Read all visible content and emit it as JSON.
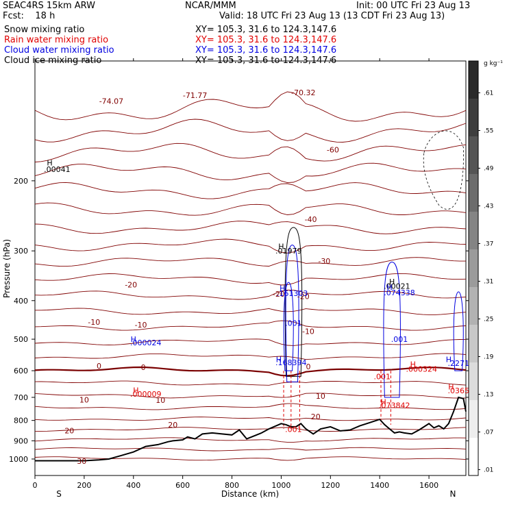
{
  "header": {
    "model": "SEAC4RS 15km ARW",
    "org": "NCAR/MMM",
    "init": "Init: 00 UTC Fri 23 Aug 13",
    "fcst": "Fcst:    18 h",
    "valid": "Valid: 18 UTC Fri 23 Aug 13 (13 CDT Fri 23 Aug 13)",
    "fields": [
      {
        "name": "Snow mixing ratio",
        "xy": "XY= 105.3, 31.6 to 124.3,147.6",
        "color": "#000000"
      },
      {
        "name": "Rain water mixing ratio",
        "xy": "XY= 105.3, 31.6 to 124.3,147.6",
        "color": "#e00000"
      },
      {
        "name": "Cloud water mixing ratio",
        "xy": "XY= 105.3, 31.6 to 124.3,147.6",
        "color": "#0000e0"
      },
      {
        "name": "Cloud ice mixing ratio",
        "xy": "XY= 105.3, 31.6 to 124.3,147.6",
        "color": "#000000"
      }
    ]
  },
  "chart_data": {
    "type": "cross-section contour",
    "xlabel": "Distance (km)",
    "ylabel": "Pressure (hPa)",
    "xlim": [
      0,
      1750
    ],
    "ylim": [
      1100,
      100
    ],
    "y_log": true,
    "x_ticks": [
      0,
      200,
      400,
      600,
      800,
      1000,
      1200,
      1400,
      1600
    ],
    "y_ticks": [
      200,
      300,
      400,
      500,
      600,
      700,
      800,
      900,
      1000
    ],
    "y_tick_labels_printed": [
      "200",
      "300",
      "400",
      "500",
      "600",
      "700",
      "800",
      "900",
      "1000"
    ],
    "end_labels": {
      "left": "S",
      "right": "N"
    },
    "colorbar": {
      "unit": "g kg⁻¹",
      "labels": [
        ".61",
        ".55",
        ".49",
        ".43",
        ".37",
        ".31",
        ".25",
        ".19",
        ".13",
        ".07",
        ".01"
      ],
      "colors": [
        "#2a2a2a",
        "#3e3e3e",
        "#555555",
        "#6c6c6c",
        "#848484",
        "#9b9b9b",
        "#b2b2b2",
        "#c8c8c8",
        "#dcdcdc",
        "#eeeeee",
        "#ffffff"
      ]
    },
    "temperature_contours": {
      "color": "#800000",
      "zero_color": "#7a0000",
      "labels": [
        {
          "text": "-74.07",
          "x": 310,
          "p": 126
        },
        {
          "text": "-71.77",
          "x": 650,
          "p": 122
        },
        {
          "text": "-70.32",
          "x": 1090,
          "p": 120
        },
        {
          "text": "-60",
          "x": 1210,
          "p": 167
        },
        {
          "text": "-40",
          "x": 1120,
          "p": 250
        },
        {
          "text": "-30",
          "x": 1175,
          "p": 318
        },
        {
          "text": "-20",
          "x": 390,
          "p": 365
        },
        {
          "text": "-20",
          "x": 990,
          "p": 385
        },
        {
          "text": "-20",
          "x": 1090,
          "p": 390
        },
        {
          "text": "-10",
          "x": 240,
          "p": 453
        },
        {
          "text": "-10",
          "x": 430,
          "p": 460
        },
        {
          "text": "-10",
          "x": 1110,
          "p": 478
        },
        {
          "text": "0",
          "x": 260,
          "p": 583
        },
        {
          "text": "0",
          "x": 440,
          "p": 588
        },
        {
          "text": "0",
          "x": 1110,
          "p": 586
        },
        {
          "text": "10",
          "x": 200,
          "p": 710
        },
        {
          "text": "10",
          "x": 510,
          "p": 711
        },
        {
          "text": "10",
          "x": 1160,
          "p": 694
        },
        {
          "text": "20",
          "x": 1140,
          "p": 782
        },
        {
          "text": "20",
          "x": 560,
          "p": 820
        },
        {
          "text": "20",
          "x": 140,
          "p": 848
        },
        {
          "text": "30",
          "x": 190,
          "p": 1012
        }
      ]
    },
    "maxima_labels": [
      {
        "text": "H",
        "x": 60,
        "p": 180,
        "color": "#000000"
      },
      {
        "text": ".00041",
        "x": 90,
        "p": 187,
        "color": "#000000"
      },
      {
        "text": "H",
        "x": 1000,
        "p": 292,
        "color": "#000000"
      },
      {
        "text": ".01979",
        "x": 1030,
        "p": 300,
        "color": "#000000"
      },
      {
        "text": "H",
        "x": 1450,
        "p": 358,
        "color": "#000000"
      },
      {
        "text": ".00021",
        "x": 1470,
        "p": 368,
        "color": "#000000"
      },
      {
        "text": "H",
        "x": 1005,
        "p": 372,
        "color": "#0000e0"
      },
      {
        "text": ".161303",
        "x": 1045,
        "p": 383,
        "color": "#0000e0"
      },
      {
        "text": "H",
        "x": 1440,
        "p": 370,
        "color": "#0000e0"
      },
      {
        "text": ".074338",
        "x": 1480,
        "p": 382,
        "color": "#0000e0"
      },
      {
        "text": ".001",
        "x": 1050,
        "p": 455,
        "color": "#0000e0"
      },
      {
        "text": ".001",
        "x": 1480,
        "p": 500,
        "color": "#0000e0"
      },
      {
        "text": "H",
        "x": 400,
        "p": 500,
        "color": "#0000e0"
      },
      {
        "text": ".000024",
        "x": 450,
        "p": 510,
        "color": "#0000e0"
      },
      {
        "text": "H",
        "x": 990,
        "p": 562,
        "color": "#0000e0"
      },
      {
        "text": ".168394",
        "x": 1040,
        "p": 572,
        "color": "#0000e0"
      },
      {
        "text": "H",
        "x": 1680,
        "p": 562,
        "color": "#0000e0"
      },
      {
        "text": ".2271",
        "x": 1720,
        "p": 574,
        "color": "#0000e0"
      },
      {
        "text": "H",
        "x": 1535,
        "p": 578,
        "color": "#e00000"
      },
      {
        "text": ".000324",
        "x": 1570,
        "p": 594,
        "color": "#e00000"
      },
      {
        "text": ".001",
        "x": 1410,
        "p": 620,
        "color": "#e00000"
      },
      {
        "text": "H",
        "x": 410,
        "p": 672,
        "color": "#e00000"
      },
      {
        "text": ".000009",
        "x": 450,
        "p": 686,
        "color": "#e00000"
      },
      {
        "text": "H",
        "x": 1690,
        "p": 658,
        "color": "#e00000"
      },
      {
        "text": ".0365",
        "x": 1720,
        "p": 673,
        "color": "#e00000"
      },
      {
        "text": "H",
        "x": 1415,
        "p": 719,
        "color": "#e00000"
      },
      {
        "text": ".073842",
        "x": 1460,
        "p": 733,
        "color": "#e00000"
      },
      {
        "text": ".001",
        "x": 1050,
        "p": 841,
        "color": "#e00000"
      }
    ],
    "terrain": {
      "x": [
        0,
        100,
        200,
        260,
        300,
        350,
        400,
        450,
        500,
        540,
        560,
        600,
        620,
        650,
        680,
        720,
        760,
        800,
        830,
        860,
        880,
        900,
        920,
        950,
        980,
        1000,
        1020,
        1040,
        1060,
        1080,
        1100,
        1130,
        1160,
        1200,
        1240,
        1280,
        1320,
        1360,
        1400,
        1420,
        1440,
        1460,
        1480,
        1500,
        1530,
        1560,
        1580,
        1600,
        1620,
        1640,
        1660,
        1680,
        1700,
        1720,
        1740,
        1750
      ],
      "p": [
        1010,
        1010,
        1010,
        1005,
        1000,
        980,
        960,
        930,
        920,
        905,
        900,
        895,
        880,
        890,
        865,
        860,
        865,
        870,
        845,
        890,
        880,
        870,
        860,
        840,
        825,
        815,
        820,
        830,
        830,
        815,
        840,
        865,
        840,
        830,
        850,
        845,
        825,
        810,
        795,
        820,
        840,
        860,
        855,
        860,
        865,
        845,
        830,
        815,
        835,
        825,
        840,
        815,
        760,
        700,
        705,
        760
      ]
    },
    "cloud_water_high": [
      {
        "x": 1085,
        "p": 372,
        "value": ".161303"
      },
      {
        "x": 1040,
        "p": 555,
        "value": ".168394"
      },
      {
        "x": 1445,
        "p": 352,
        "value": ".074338"
      },
      {
        "x": 1685,
        "p": 550,
        "value": ".2271"
      }
    ]
  }
}
